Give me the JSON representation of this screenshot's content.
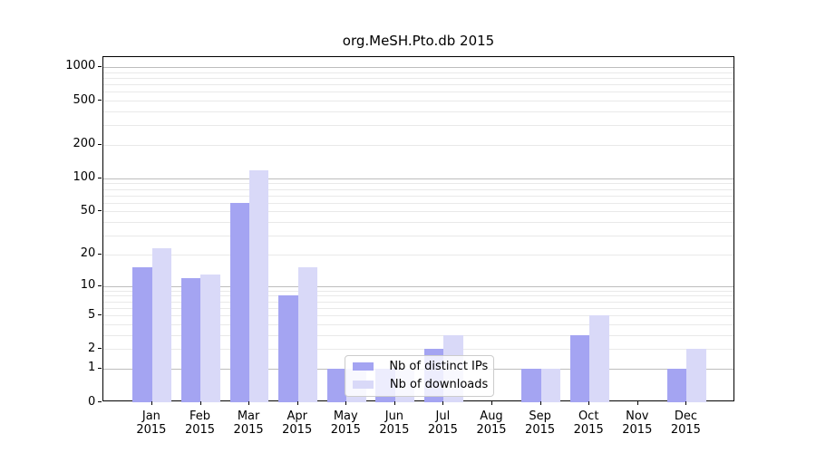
{
  "chart_data": {
    "type": "bar",
    "title": "org.MeSH.Pto.db 2015",
    "scale": "log1p",
    "grid": "on",
    "legend_position": "lower-center",
    "categories": [
      "Jan",
      "Feb",
      "Mar",
      "Apr",
      "May",
      "Jun",
      "Jul",
      "Aug",
      "Sep",
      "Oct",
      "Nov",
      "Dec"
    ],
    "year": "2015",
    "series": [
      {
        "name": "Nb of distinct IPs",
        "color": "#a4a4f2",
        "values": [
          15,
          12,
          60,
          8,
          1,
          1,
          2,
          0,
          1,
          3,
          0,
          1
        ]
      },
      {
        "name": "Nb of downloads",
        "color": "#d9d9f8",
        "values": [
          23,
          13,
          117,
          15,
          1,
          1,
          3,
          0,
          1,
          5,
          0,
          2
        ]
      }
    ],
    "y_ticks": [
      0,
      1,
      2,
      5,
      10,
      20,
      50,
      100,
      200,
      500,
      1000
    ],
    "y_minor_gridlines": [
      2,
      3,
      4,
      5,
      6,
      7,
      8,
      9,
      20,
      30,
      40,
      50,
      60,
      70,
      80,
      90,
      200,
      300,
      400,
      500,
      600,
      700,
      800,
      900
    ],
    "y_major_gridlines": [
      1,
      10,
      100,
      1000
    ],
    "ylim": [
      0,
      1220
    ],
    "xlabel": "",
    "ylabel": ""
  },
  "legend": {
    "items": [
      {
        "label": "Nb of distinct IPs"
      },
      {
        "label": "Nb of downloads"
      }
    ]
  }
}
